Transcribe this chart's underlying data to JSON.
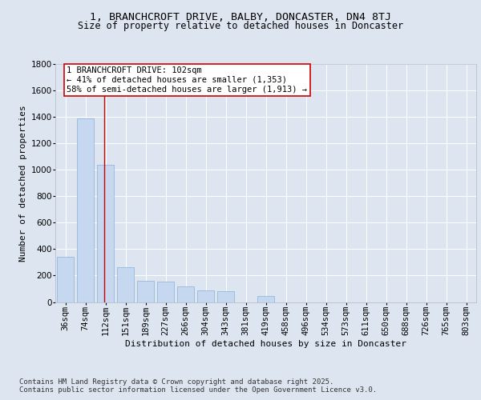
{
  "title1": "1, BRANCHCROFT DRIVE, BALBY, DONCASTER, DN4 8TJ",
  "title2": "Size of property relative to detached houses in Doncaster",
  "xlabel": "Distribution of detached houses by size in Doncaster",
  "ylabel": "Number of detached properties",
  "categories": [
    "36sqm",
    "74sqm",
    "112sqm",
    "151sqm",
    "189sqm",
    "227sqm",
    "266sqm",
    "304sqm",
    "343sqm",
    "381sqm",
    "419sqm",
    "458sqm",
    "496sqm",
    "534sqm",
    "573sqm",
    "611sqm",
    "650sqm",
    "688sqm",
    "726sqm",
    "765sqm",
    "803sqm"
  ],
  "values": [
    340,
    1390,
    1040,
    265,
    160,
    155,
    115,
    90,
    80,
    0,
    45,
    0,
    0,
    0,
    0,
    0,
    0,
    0,
    0,
    0,
    0
  ],
  "bar_color": "#c5d8ef",
  "bar_edge_color": "#8ab0d4",
  "vline_x_index": 2,
  "vline_x_offset": -0.08,
  "vline_color": "#cc0000",
  "annotation_text": "1 BRANCHCROFT DRIVE: 102sqm\n← 41% of detached houses are smaller (1,353)\n58% of semi-detached houses are larger (1,913) →",
  "annotation_box_color": "#ffffff",
  "annotation_box_edge": "#cc0000",
  "ylim": [
    0,
    1800
  ],
  "yticks": [
    0,
    200,
    400,
    600,
    800,
    1000,
    1200,
    1400,
    1600,
    1800
  ],
  "background_color": "#dde6f0",
  "footer_text": "Contains HM Land Registry data © Crown copyright and database right 2025.\nContains public sector information licensed under the Open Government Licence v3.0.",
  "title1_fontsize": 9.5,
  "title2_fontsize": 8.5,
  "xlabel_fontsize": 8,
  "ylabel_fontsize": 8,
  "tick_fontsize": 7.5,
  "annotation_fontsize": 7.5,
  "footer_fontsize": 6.5
}
